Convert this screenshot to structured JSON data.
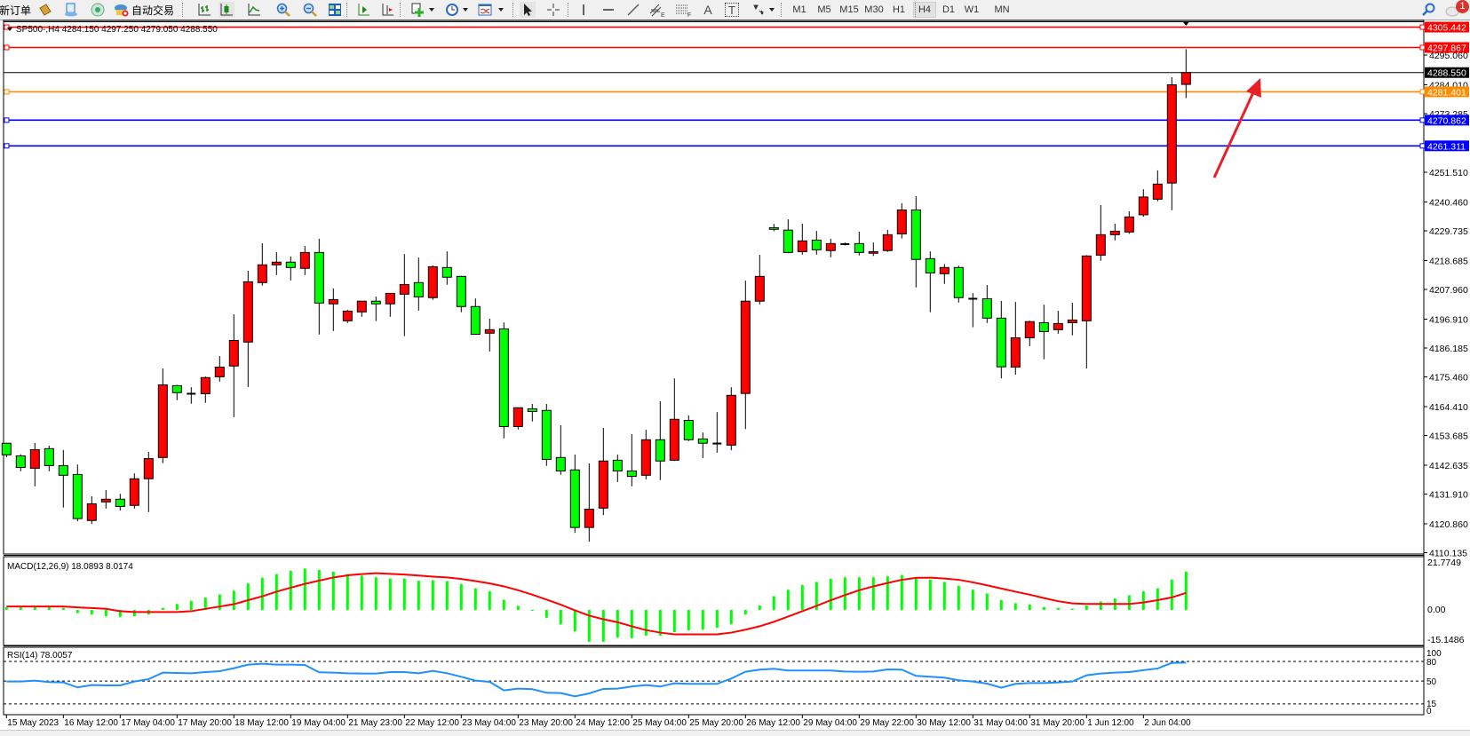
{
  "toolbar": {
    "new_order_label": "新订单",
    "auto_trading_label": "自动交易",
    "timeframes": [
      "M1",
      "M5",
      "M15",
      "M30",
      "H1",
      "H4",
      "D1",
      "W1",
      "MN"
    ],
    "active_timeframe": "H4",
    "notification_count": "1",
    "tools": {
      "channel_suffix": "E",
      "fibo_suffix": "F",
      "text_tool": "A",
      "label_tool": "T"
    }
  },
  "chart": {
    "legend": "SP500-,H4  4284.150 4297.250 4279.050 4288.550",
    "symbol": "SP500-",
    "timeframe": "H4",
    "colors": {
      "bull": "#FF0000",
      "bear": "#00FF00",
      "outline": "#000000",
      "grid_dash": "#000000",
      "rsi_line": "#1E90FF",
      "macd_hist": "#00FF00",
      "macd_signal": "#FF0000",
      "arrow": "#E8202A"
    },
    "price_ticks": [
      "4295.060",
      "4284.010",
      "4273.285",
      "4251.510",
      "4240.460",
      "4229.735",
      "4218.685",
      "4207.960",
      "4196.910",
      "4186.185",
      "4175.460",
      "4164.410",
      "4153.685",
      "4142.635",
      "4131.910",
      "4120.860",
      "4110.135"
    ],
    "horizontal_lines": [
      {
        "price": "4305.442",
        "color": "#FF0000"
      },
      {
        "price": "4297.867",
        "color": "#FF0000"
      },
      {
        "price": "4281.401",
        "color": "#FF8C00"
      },
      {
        "price": "4270.862",
        "color": "#0000FF"
      },
      {
        "price": "4261.311",
        "color": "#0000FF"
      }
    ],
    "bid_line": {
      "price": "4288.550",
      "color": "#000000"
    },
    "time_labels": [
      "15 May 2023",
      "16 May 12:00",
      "17 May 04:00",
      "17 May 20:00",
      "18 May 12:00",
      "19 May 04:00",
      "21 May 23:00",
      "22 May 12:00",
      "23 May 04:00",
      "23 May 20:00",
      "24 May 12:00",
      "25 May 04:00",
      "25 May 20:00",
      "26 May 12:00",
      "29 May 04:00",
      "29 May 22:00",
      "30 May 12:00",
      "31 May 04:00",
      "31 May 20:00",
      "1 Jun 12:00",
      "2 Jun 04:00"
    ],
    "annotation": "red-arrow-up"
  },
  "chart_data": {
    "type": "candlestick",
    "ohlc": [
      [
        4150.8,
        4151.0,
        4145.6,
        4146.5
      ],
      [
        4146.1,
        4146.7,
        4140.4,
        4141.8
      ],
      [
        4141.5,
        4150.9,
        4134.8,
        4148.4
      ],
      [
        4148.8,
        4149.9,
        4140.4,
        4142.5
      ],
      [
        4142.5,
        4148.3,
        4126.9,
        4138.9
      ],
      [
        4139.2,
        4142.9,
        4121.8,
        4122.8
      ],
      [
        4122.1,
        4131.1,
        4120.8,
        4128.3
      ],
      [
        4129.0,
        4133.4,
        4126.5,
        4130.0
      ],
      [
        4130.0,
        4132.0,
        4125.8,
        4127.3
      ],
      [
        4127.7,
        4139.6,
        4126.5,
        4137.6
      ],
      [
        4137.6,
        4147.6,
        4125.2,
        4145.1
      ],
      [
        4145.5,
        4178.6,
        4143.4,
        4172.5
      ],
      [
        4172.2,
        4172.5,
        4166.8,
        4169.6
      ],
      [
        4169.2,
        4171.6,
        4165.5,
        4169.0
      ],
      [
        4169.2,
        4175.6,
        4165.8,
        4175.2
      ],
      [
        4175.5,
        4183.2,
        4173.7,
        4179.1
      ],
      [
        4179.5,
        4198.7,
        4160.5,
        4189.0
      ],
      [
        4188.4,
        4214.9,
        4171.7,
        4210.8
      ],
      [
        4210.5,
        4225.1,
        4209.4,
        4217.1
      ],
      [
        4217.1,
        4221.8,
        4213.3,
        4218.1
      ],
      [
        4218.1,
        4220.2,
        4211.3,
        4216.1
      ],
      [
        4215.8,
        4224.1,
        4213.3,
        4221.7
      ],
      [
        4221.7,
        4226.8,
        4191.2,
        4202.9
      ],
      [
        4202.6,
        4208.3,
        4192.5,
        4204.2
      ],
      [
        4196.3,
        4200.4,
        4195.5,
        4199.9
      ],
      [
        4199.6,
        4203.6,
        4197.8,
        4203.6
      ],
      [
        4203.6,
        4205.3,
        4196.2,
        4202.6
      ],
      [
        4202.6,
        4206.6,
        4197.8,
        4206.5
      ],
      [
        4206.2,
        4221.1,
        4190.6,
        4209.8
      ],
      [
        4210.5,
        4219.8,
        4200.1,
        4205.2
      ],
      [
        4204.9,
        4216.9,
        4204.1,
        4216.4
      ],
      [
        4216.1,
        4222.1,
        4209.7,
        4212.5
      ],
      [
        4212.8,
        4213.0,
        4199.5,
        4201.6
      ],
      [
        4201.6,
        4204.6,
        4191.2,
        4191.3
      ],
      [
        4191.7,
        4197.1,
        4184.9,
        4193.0
      ],
      [
        4193.3,
        4195.7,
        4152.6,
        4157.0
      ],
      [
        4157.0,
        4164.0,
        4155.9,
        4164.0
      ],
      [
        4163.6,
        4165.4,
        4158.9,
        4162.6
      ],
      [
        4163.0,
        4165.4,
        4142.4,
        4144.8
      ],
      [
        4145.5,
        4157.5,
        4139.1,
        4140.5
      ],
      [
        4140.9,
        4146.6,
        4117.5,
        4119.5
      ],
      [
        4119.5,
        4143.3,
        4114.2,
        4126.3
      ],
      [
        4126.7,
        4156.5,
        4124.1,
        4144.2
      ],
      [
        4144.5,
        4146.6,
        4136.4,
        4140.5
      ],
      [
        4140.5,
        4154.2,
        4134.8,
        4138.5
      ],
      [
        4138.9,
        4155.8,
        4137.4,
        4152.1
      ],
      [
        4152.1,
        4166.4,
        4137.1,
        4144.2
      ],
      [
        4144.5,
        4174.9,
        4144.2,
        4159.7
      ],
      [
        4159.3,
        4161.1,
        4151.6,
        4152.1
      ],
      [
        4152.4,
        4154.8,
        4145.3,
        4150.8
      ],
      [
        4150.7,
        4162.4,
        4147.3,
        4150.6
      ],
      [
        4150.1,
        4171.6,
        4148.2,
        4168.6
      ],
      [
        4169.3,
        4211.2,
        4156.1,
        4203.6
      ],
      [
        4203.6,
        4220.8,
        4202.4,
        4212.8
      ],
      [
        4230.9,
        4232.3,
        4229.6,
        4230.3
      ],
      [
        4230.0,
        4234.0,
        4221.4,
        4221.7
      ],
      [
        4222.0,
        4232.4,
        4220.9,
        4226.0
      ],
      [
        4226.3,
        4229.7,
        4220.9,
        4222.7
      ],
      [
        4222.4,
        4226.8,
        4219.9,
        4225.0
      ],
      [
        4224.8,
        4225.4,
        4224.3,
        4224.7
      ],
      [
        4225.0,
        4229.4,
        4220.6,
        4221.7
      ],
      [
        4221.4,
        4225.4,
        4220.4,
        4222.0
      ],
      [
        4222.4,
        4230.1,
        4221.9,
        4228.3
      ],
      [
        4228.6,
        4240.0,
        4226.9,
        4237.5
      ],
      [
        4237.5,
        4242.6,
        4208.7,
        4219.1
      ],
      [
        4219.4,
        4222.1,
        4199.5,
        4214.1
      ],
      [
        4213.8,
        4217.4,
        4210.0,
        4216.1
      ],
      [
        4216.1,
        4216.8,
        4203.1,
        4204.9
      ],
      [
        4204.5,
        4206.6,
        4193.9,
        4204.3
      ],
      [
        4204.5,
        4209.6,
        4195.5,
        4197.3
      ],
      [
        4197.3,
        4203.7,
        4174.9,
        4179.2
      ],
      [
        4179.1,
        4203.3,
        4176.3,
        4190.0
      ],
      [
        4190.0,
        4196.3,
        4186.9,
        4196.0
      ],
      [
        4195.6,
        4202.3,
        4182.0,
        4192.3
      ],
      [
        4193.0,
        4200.0,
        4191.5,
        4195.3
      ],
      [
        4195.6,
        4203.0,
        4190.9,
        4196.6
      ],
      [
        4196.3,
        4220.7,
        4178.6,
        4220.4
      ],
      [
        4220.7,
        4239.3,
        4218.6,
        4228.3
      ],
      [
        4228.3,
        4232.4,
        4226.2,
        4229.6
      ],
      [
        4229.3,
        4237.0,
        4228.6,
        4234.9
      ],
      [
        4235.7,
        4245.2,
        4235.0,
        4242.3
      ],
      [
        4241.5,
        4252.2,
        4240.7,
        4247.1
      ],
      [
        4247.5,
        4286.8,
        4237.4,
        4284.0
      ],
      [
        4284.15,
        4297.25,
        4279.05,
        4288.55
      ]
    ],
    "price_range": [
      4110.135,
      4305.442
    ],
    "macd": {
      "label": "MACD(12,26,9) 18.0893 8.0174",
      "axis_labels": [
        "21.7749",
        "0.00",
        "-15.1486"
      ],
      "range": [
        -15.1486,
        21.7749
      ],
      "histogram": [
        1.2,
        1.2,
        1.2,
        1.2,
        1.0,
        -1.5,
        -2.2,
        -3.0,
        -3.3,
        -3.0,
        -2.2,
        1.0,
        2.8,
        4.3,
        5.8,
        7.3,
        9.1,
        12.5,
        15.2,
        16.9,
        18.4,
        19.5,
        18.9,
        18.0,
        16.9,
        16.2,
        15.4,
        14.8,
        14.8,
        13.7,
        14.0,
        13.6,
        12.2,
        10.2,
        8.8,
        4.8,
        1.9,
        -0.1,
        -3.7,
        -6.8,
        -10.1,
        -15.0,
        -15.0,
        -13.0,
        -13.3,
        -12.1,
        -12.1,
        -10.5,
        -9.6,
        -9.3,
        -8.4,
        -6.7,
        -2.2,
        2.1,
        6.5,
        9.5,
        11.7,
        13.2,
        14.7,
        15.4,
        15.4,
        15.4,
        15.8,
        16.5,
        15.1,
        14.3,
        13.2,
        11.4,
        9.5,
        7.7,
        4.7,
        3.2,
        2.5,
        1.4,
        1.0,
        0.6,
        2.1,
        4.0,
        5.4,
        6.9,
        8.8,
        10.2,
        14.3,
        18.09
      ],
      "signal": [
        1.6,
        1.6,
        1.6,
        1.6,
        1.6,
        1.2,
        0.9,
        0.5,
        -0.6,
        -1.0,
        -1.0,
        -1.0,
        -1.0,
        -0.6,
        0.5,
        1.6,
        2.7,
        4.6,
        6.4,
        8.6,
        10.5,
        12.3,
        13.8,
        15.3,
        16.3,
        16.9,
        17.3,
        17.0,
        16.7,
        16.2,
        15.7,
        15.3,
        14.6,
        13.6,
        12.5,
        11.1,
        9.3,
        7.2,
        4.9,
        2.5,
        -0.2,
        -2.7,
        -4.4,
        -5.8,
        -7.7,
        -9.5,
        -10.7,
        -11.5,
        -11.5,
        -11.5,
        -11.5,
        -10.7,
        -9.3,
        -7.7,
        -5.6,
        -3.1,
        -0.6,
        1.9,
        4.6,
        7.0,
        9.3,
        11.1,
        12.7,
        14.2,
        15.1,
        15.2,
        14.8,
        14.2,
        13.0,
        11.6,
        10.1,
        8.6,
        7.2,
        5.6,
        4.1,
        3.1,
        2.8,
        2.8,
        2.8,
        2.8,
        3.5,
        4.6,
        5.9,
        8.02
      ]
    },
    "rsi": {
      "label": "RSI(14) 78.0057",
      "axis_labels": [
        "100",
        "80",
        "50",
        "15",
        "0"
      ],
      "levels": [
        80,
        50,
        15
      ],
      "values": [
        49.3,
        49.3,
        50.7,
        48.4,
        48.0,
        40.3,
        43.9,
        43.4,
        43.4,
        49.3,
        52.9,
        62.8,
        62.4,
        61.9,
        63.7,
        65.1,
        69.6,
        75.0,
        76.4,
        75.0,
        75.0,
        74.6,
        63.3,
        62.8,
        61.9,
        61.5,
        61.5,
        63.7,
        63.7,
        61.9,
        65.6,
        61.9,
        56.5,
        50.7,
        48.8,
        35.8,
        38.5,
        37.6,
        32.1,
        31.7,
        26.7,
        31.2,
        38.0,
        38.5,
        41.6,
        43.9,
        41.6,
        46.6,
        45.7,
        45.7,
        45.7,
        53.8,
        64.2,
        67.4,
        68.7,
        66.0,
        66.0,
        66.0,
        66.0,
        64.6,
        64.2,
        64.6,
        67.8,
        67.4,
        57.9,
        56.5,
        55.2,
        51.1,
        49.3,
        46.1,
        39.8,
        45.7,
        47.0,
        47.0,
        47.9,
        49.3,
        58.8,
        61.5,
        62.8,
        63.7,
        66.5,
        69.2,
        77.7,
        78.01
      ]
    }
  }
}
